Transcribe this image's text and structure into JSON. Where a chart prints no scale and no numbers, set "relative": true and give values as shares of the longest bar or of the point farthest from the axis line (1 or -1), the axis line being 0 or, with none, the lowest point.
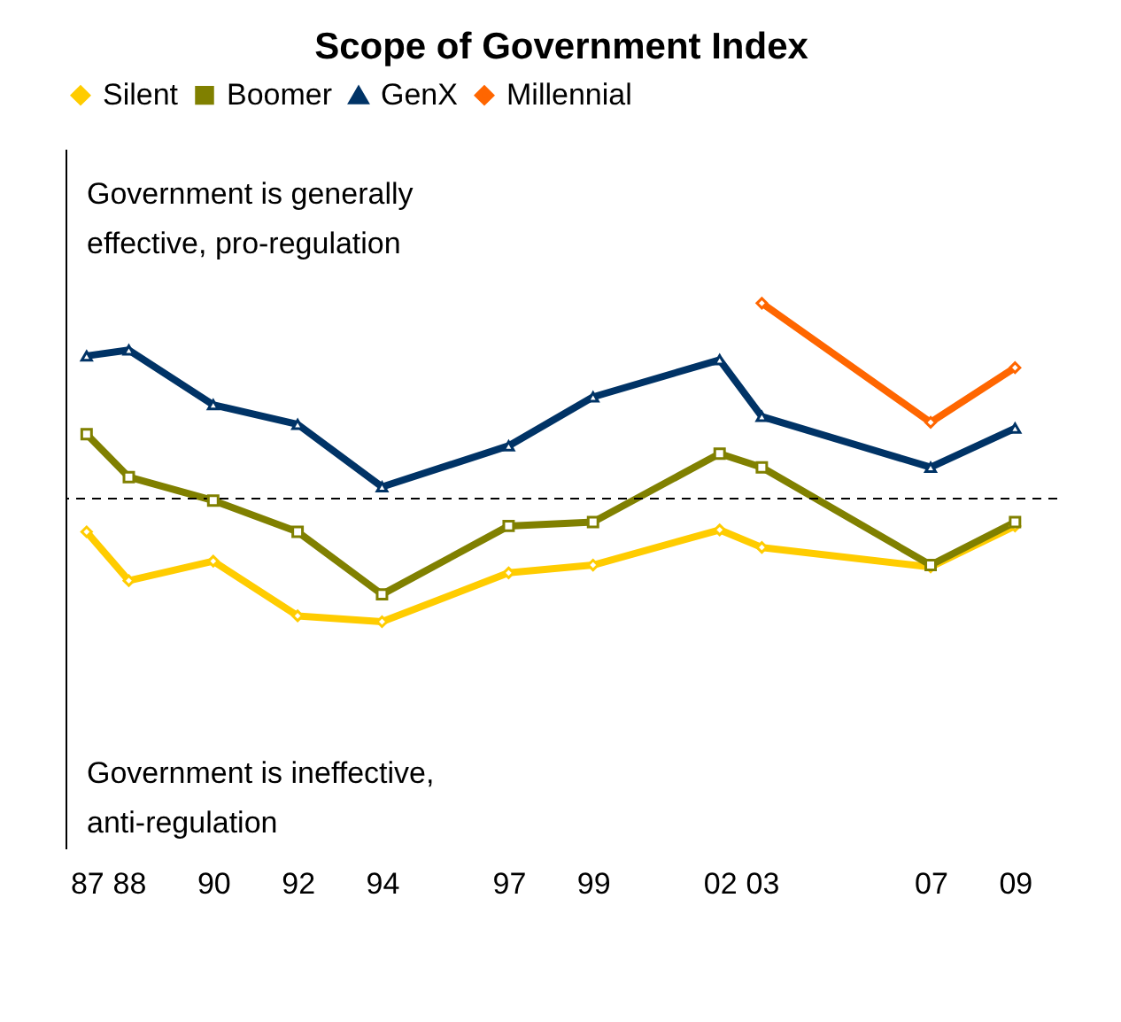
{
  "chart_data": {
    "type": "line",
    "title": "Scope of Government Index",
    "relative": true,
    "x": [
      1987,
      1988,
      1990,
      1992,
      1994,
      1997,
      1999,
      2002,
      2003,
      2007,
      2009
    ],
    "xlim": [
      1986.5,
      2010
    ],
    "xticks": [
      {
        "value": 1987,
        "label": "87"
      },
      {
        "value": 1988,
        "label": "88"
      },
      {
        "value": 1990,
        "label": "90"
      },
      {
        "value": 1992,
        "label": "92"
      },
      {
        "value": 1994,
        "label": "94"
      },
      {
        "value": 1997,
        "label": "97"
      },
      {
        "value": 1999,
        "label": "99"
      },
      {
        "value": 2002,
        "label": "02"
      },
      {
        "value": 2003,
        "label": "03"
      },
      {
        "value": 2007,
        "label": "07"
      },
      {
        "value": 2009,
        "label": "09"
      }
    ],
    "series": [
      {
        "name": "Silent",
        "color": "#ffcc00",
        "marker": "diamond",
        "values": [
          -0.17,
          -0.42,
          -0.32,
          -0.6,
          -0.63,
          -0.38,
          -0.34,
          -0.16,
          -0.25,
          -0.35,
          -0.14
        ]
      },
      {
        "name": "Boomer",
        "color": "#808000",
        "marker": "square",
        "values": [
          0.33,
          0.11,
          -0.01,
          -0.17,
          -0.49,
          -0.14,
          -0.12,
          0.23,
          0.16,
          -0.34,
          -0.12
        ]
      },
      {
        "name": "GenX",
        "color": "#003366",
        "marker": "triangle",
        "values": [
          0.73,
          0.76,
          0.48,
          0.38,
          0.06,
          0.27,
          0.52,
          0.71,
          0.42,
          0.16,
          0.36
        ]
      },
      {
        "name": "Millennial",
        "color": "#ff6600",
        "marker": "diamond",
        "x": [
          2003,
          2007,
          2009
        ],
        "values": [
          1.0,
          0.39,
          0.67
        ]
      }
    ],
    "ref_lines": [
      {
        "axis": "y",
        "value": 0,
        "color": "#000000",
        "line_style": "dashed"
      }
    ],
    "annotations": [
      "Government is generally\neffective, pro-regulation",
      "Government is ineffective,\nanti-regulation"
    ],
    "legend": "top",
    "grid": false,
    "line_style": "solid"
  }
}
